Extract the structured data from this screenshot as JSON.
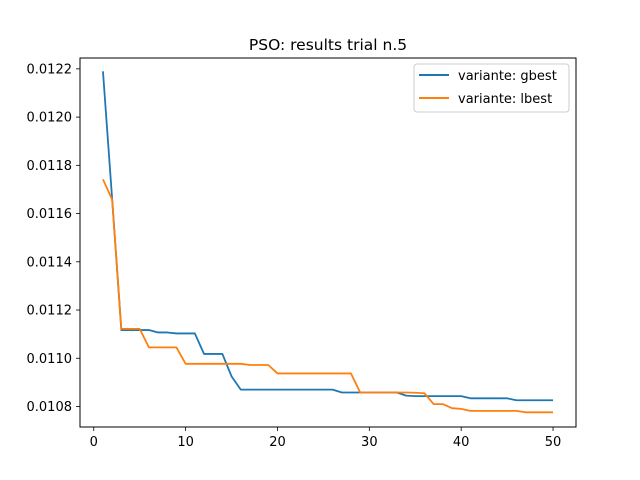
{
  "chart_data": {
    "type": "line",
    "title": "PSO: results trial n.5",
    "xlabel": "",
    "ylabel": "",
    "xlim": [
      -1.5,
      52.5
    ],
    "ylim": [
      0.010715,
      0.012245
    ],
    "xticks": [
      0,
      10,
      20,
      30,
      40,
      50
    ],
    "yticks": [
      0.0108,
      0.011,
      0.0112,
      0.0114,
      0.0116,
      0.0118,
      0.012,
      0.0122
    ],
    "ytick_labels": [
      "0.0108",
      "0.0110",
      "0.0112",
      "0.0114",
      "0.0116",
      "0.0118",
      "0.0120",
      "0.0122"
    ],
    "grid": false,
    "legend_position": "top-right",
    "series": [
      {
        "name": "variante: gbest",
        "color": "#1f77b4",
        "x": [
          1,
          2,
          3,
          4,
          5,
          6,
          7,
          8,
          9,
          10,
          11,
          12,
          13,
          14,
          15,
          16,
          17,
          18,
          19,
          20,
          21,
          22,
          23,
          24,
          25,
          26,
          27,
          28,
          29,
          30,
          31,
          32,
          33,
          34,
          35,
          36,
          37,
          38,
          39,
          40,
          41,
          42,
          43,
          44,
          45,
          46,
          47,
          48,
          49,
          50
        ],
        "y": [
          0.01219,
          0.01166,
          0.011117,
          0.011117,
          0.011117,
          0.011117,
          0.011107,
          0.011107,
          0.011103,
          0.011103,
          0.011103,
          0.011018,
          0.011018,
          0.011018,
          0.010925,
          0.01087,
          0.01087,
          0.01087,
          0.01087,
          0.01087,
          0.01087,
          0.01087,
          0.01087,
          0.01087,
          0.01087,
          0.01087,
          0.010858,
          0.010858,
          0.010858,
          0.010858,
          0.010858,
          0.010858,
          0.010858,
          0.010845,
          0.010843,
          0.010843,
          0.010843,
          0.010843,
          0.010843,
          0.010843,
          0.010834,
          0.010834,
          0.010834,
          0.010834,
          0.010834,
          0.010826,
          0.010826,
          0.010826,
          0.010826,
          0.010826
        ]
      },
      {
        "name": "variante: lbest",
        "color": "#ff7f0e",
        "x": [
          1,
          2,
          3,
          4,
          5,
          6,
          7,
          8,
          9,
          10,
          11,
          12,
          13,
          14,
          15,
          16,
          17,
          18,
          19,
          20,
          21,
          22,
          23,
          24,
          25,
          26,
          27,
          28,
          29,
          30,
          31,
          32,
          33,
          34,
          35,
          36,
          37,
          38,
          39,
          40,
          41,
          42,
          43,
          44,
          45,
          46,
          47,
          48,
          49,
          50
        ],
        "y": [
          0.011742,
          0.011658,
          0.011122,
          0.011122,
          0.011122,
          0.011045,
          0.011045,
          0.011045,
          0.011045,
          0.010977,
          0.010977,
          0.010977,
          0.010977,
          0.010977,
          0.010977,
          0.010977,
          0.010972,
          0.010972,
          0.010972,
          0.010937,
          0.010937,
          0.010937,
          0.010937,
          0.010937,
          0.010937,
          0.010937,
          0.010937,
          0.010937,
          0.010858,
          0.010858,
          0.010858,
          0.010858,
          0.010858,
          0.010858,
          0.010857,
          0.010855,
          0.01081,
          0.01081,
          0.010793,
          0.01079,
          0.010782,
          0.010782,
          0.010782,
          0.010782,
          0.010782,
          0.010782,
          0.010776,
          0.010776,
          0.010776,
          0.010776
        ]
      }
    ]
  }
}
